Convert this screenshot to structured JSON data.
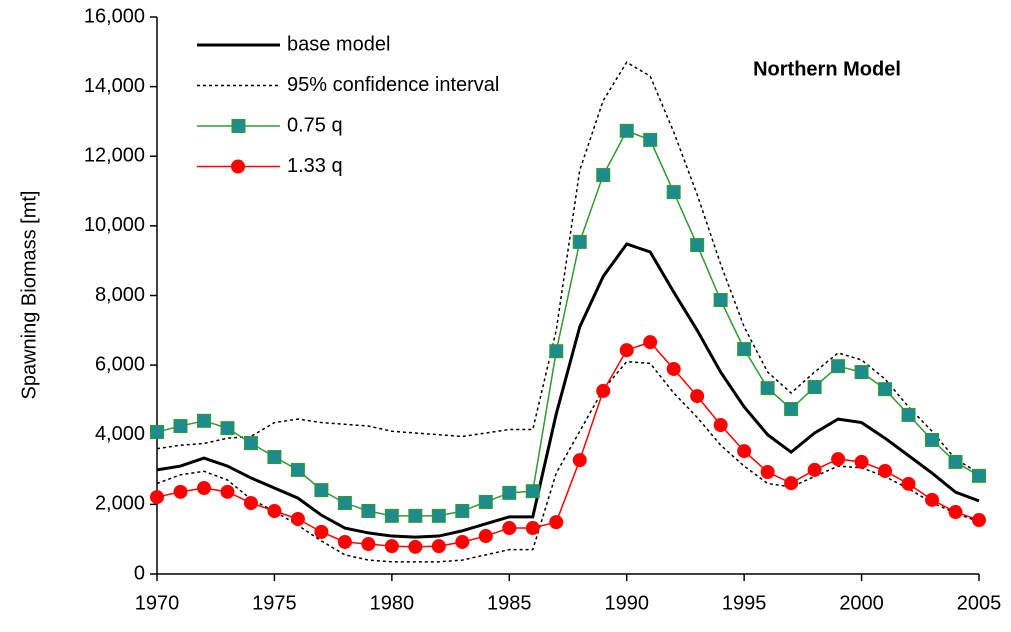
{
  "chart_data": {
    "type": "line",
    "annotation": "Northern Model",
    "y_label": "Spawning Biomass [mt]",
    "x": [
      1970,
      1971,
      1972,
      1973,
      1974,
      1975,
      1976,
      1977,
      1978,
      1979,
      1980,
      1981,
      1982,
      1983,
      1984,
      1985,
      1986,
      1987,
      1988,
      1989,
      1990,
      1991,
      1992,
      1993,
      1994,
      1995,
      1996,
      1997,
      1998,
      1999,
      2000,
      2001,
      2002,
      2003,
      2004,
      2005
    ],
    "xlim": [
      1970,
      2005
    ],
    "xticks": [
      1970,
      1975,
      1980,
      1985,
      1990,
      1995,
      2000,
      2005
    ],
    "ylim": [
      0,
      16000
    ],
    "yticks": [
      0,
      {
        "value": 2000,
        "label": "2,000"
      },
      {
        "value": 4000,
        "label": "4,000"
      },
      {
        "value": 6000,
        "label": "6,000"
      },
      {
        "value": 8000,
        "label": "8,000"
      },
      {
        "value": 10000,
        "label": "10,000"
      },
      {
        "value": 12000,
        "label": "12,000"
      },
      {
        "value": 14000,
        "label": "14,000"
      },
      {
        "value": 16000,
        "label": "16,000"
      }
    ],
    "series": [
      {
        "name": "base model",
        "color": "#000000",
        "style": "thick",
        "values": [
          2990,
          3100,
          3330,
          3100,
          2760,
          2470,
          2180,
          1690,
          1320,
          1180,
          1090,
          1060,
          1090,
          1240,
          1440,
          1640,
          1640,
          4600,
          7100,
          8550,
          9480,
          9250,
          8100,
          7000,
          5800,
          4800,
          4000,
          3500,
          4050,
          4450,
          4350,
          3900,
          3400,
          2900,
          2350,
          2100
        ]
      },
      {
        "name": "95% confidence interval",
        "color": "#000000",
        "style": "dotted",
        "upper": [
          3600,
          3700,
          3750,
          3900,
          3950,
          4350,
          4450,
          4350,
          4300,
          4250,
          4100,
          4050,
          4000,
          3950,
          4050,
          4150,
          4150,
          7000,
          11600,
          13600,
          14700,
          14300,
          12700,
          10900,
          8900,
          7100,
          5800,
          5200,
          5800,
          6350,
          6150,
          5600,
          4800,
          4100,
          3300,
          2900
        ],
        "lower": [
          2600,
          2850,
          2950,
          2700,
          2150,
          1800,
          1400,
          950,
          550,
          400,
          350,
          350,
          350,
          400,
          550,
          700,
          700,
          2900,
          4100,
          5300,
          6100,
          6050,
          5200,
          4500,
          3700,
          3100,
          2600,
          2500,
          2800,
          3100,
          3050,
          2800,
          2450,
          2050,
          1750,
          1500
        ]
      },
      {
        "name": "0.75 q",
        "color": "#339933",
        "marker": "square",
        "marker_color": "#1e8c8c",
        "values": [
          4080,
          4250,
          4400,
          4190,
          3760,
          3360,
          2990,
          2410,
          2040,
          1810,
          1670,
          1670,
          1670,
          1810,
          2070,
          2330,
          2380,
          6400,
          9540,
          11460,
          12730,
          12470,
          10970,
          9450,
          7870,
          6460,
          5340,
          4740,
          5370,
          5970,
          5800,
          5310,
          4570,
          3850,
          3220,
          2820
        ]
      },
      {
        "name": "1.33 q",
        "color": "#ff0000",
        "marker": "circle",
        "marker_color": "#ff0000",
        "values": [
          2210,
          2360,
          2470,
          2360,
          2040,
          1810,
          1580,
          1210,
          920,
          860,
          800,
          780,
          800,
          920,
          1090,
          1320,
          1320,
          1490,
          3270,
          5260,
          6430,
          6660,
          5890,
          5110,
          4280,
          3530,
          2930,
          2610,
          2990,
          3300,
          3220,
          2960,
          2590,
          2130,
          1780,
          1550
        ]
      }
    ]
  }
}
